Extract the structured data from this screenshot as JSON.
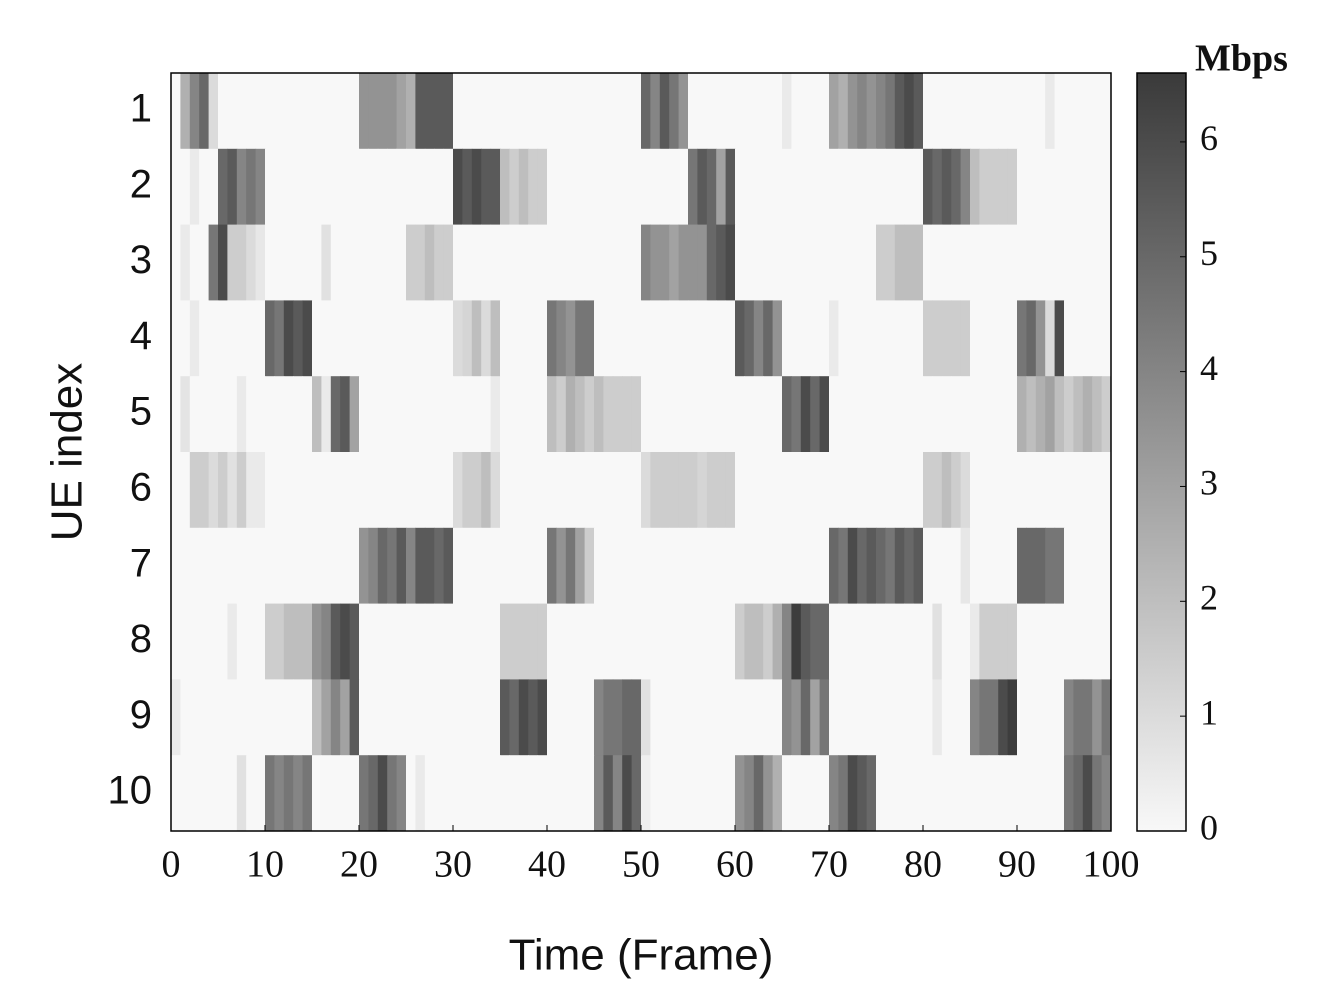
{
  "chart_data": {
    "type": "heatmap",
    "x_label": "Time (Frame)",
    "y_label": "UE index",
    "y_categories": [
      "1",
      "2",
      "3",
      "4",
      "5",
      "6",
      "7",
      "8",
      "9",
      "10"
    ],
    "xlim": [
      0,
      100
    ],
    "xticks": [
      0,
      10,
      20,
      30,
      40,
      50,
      60,
      70,
      80,
      90,
      100
    ],
    "cmap": [
      "#f8f8f8",
      "#3a3a3a"
    ],
    "colorbar": {
      "label": "Mbps",
      "lim": [
        0,
        6.6
      ],
      "ticks": [
        0,
        1,
        2,
        3,
        4,
        5,
        6
      ]
    },
    "z": [
      [
        0,
        2.5,
        4,
        5,
        1,
        0,
        0,
        0,
        0,
        0,
        0,
        0,
        0,
        0,
        0,
        0,
        0,
        0,
        0,
        0,
        3.5,
        3.5,
        3.5,
        3.5,
        3,
        2.5,
        5.5,
        5.5,
        5.5,
        5.5,
        0,
        0,
        0,
        0,
        0,
        0,
        0,
        0,
        0,
        0,
        0,
        0,
        0,
        0,
        0,
        0,
        0,
        0,
        0,
        0,
        5,
        4,
        5.5,
        4.5,
        3.5,
        0,
        0,
        0,
        0,
        0,
        0,
        0,
        0,
        0,
        0,
        0.5,
        0,
        0,
        0,
        0,
        3,
        2.5,
        3.5,
        4,
        3.5,
        4,
        4.5,
        5.5,
        6,
        5.5,
        0,
        0,
        0,
        0,
        0,
        0,
        0,
        0,
        0,
        0,
        0,
        0,
        0,
        0.5,
        0,
        0,
        0,
        0,
        0,
        0
      ],
      [
        0,
        0,
        0.5,
        0,
        0,
        5,
        5.5,
        4,
        4.5,
        4,
        0,
        0,
        0,
        0,
        0,
        0,
        0,
        0,
        0,
        0,
        0,
        0,
        0,
        0,
        0,
        0,
        0,
        0,
        0,
        0,
        6,
        5.5,
        6,
        5.5,
        5.5,
        2,
        1.5,
        2,
        1.5,
        1.5,
        0,
        0,
        0,
        0,
        0,
        0,
        0,
        0,
        0,
        0,
        0,
        0,
        0,
        0,
        0,
        4.5,
        5.5,
        5,
        3,
        5.5,
        0,
        0,
        0,
        0,
        0,
        0,
        0,
        0,
        0,
        0,
        0,
        0,
        0,
        0,
        0,
        0,
        0,
        0,
        0,
        0,
        5.5,
        5,
        5.5,
        5,
        4,
        2,
        1.5,
        1.5,
        1.5,
        1.5,
        0,
        0,
        0,
        0,
        0,
        0,
        0,
        0,
        0,
        0
      ],
      [
        0,
        0.5,
        0,
        0,
        4.5,
        6,
        1.5,
        1.5,
        1,
        0.6,
        0,
        0,
        0,
        0,
        0,
        0,
        0.8,
        0,
        0,
        0,
        0,
        0,
        0,
        0,
        0,
        1.5,
        1.5,
        2,
        1.5,
        1.5,
        0,
        0,
        0,
        0,
        0,
        0,
        0,
        0,
        0,
        0,
        0,
        0,
        0,
        0,
        0,
        0,
        0,
        0,
        0,
        0,
        4,
        3.5,
        3.5,
        3,
        3.5,
        3.5,
        3.5,
        5,
        5.5,
        6,
        0,
        0,
        0,
        0,
        0,
        0,
        0,
        0,
        0,
        0,
        0,
        0,
        0,
        0,
        0,
        1.5,
        1.5,
        2,
        2,
        2,
        0,
        0,
        0,
        0,
        0,
        0,
        0,
        0,
        0,
        0,
        0,
        0,
        0,
        0,
        0,
        0,
        0,
        0,
        0,
        0
      ],
      [
        0,
        0,
        0.5,
        0,
        0,
        0,
        0,
        0,
        0,
        0,
        5,
        4.5,
        6,
        5.5,
        6,
        0,
        0,
        0,
        0,
        0,
        0,
        0,
        0,
        0,
        0,
        0,
        0,
        0,
        0,
        0,
        1,
        1.2,
        2,
        1,
        2,
        0,
        0,
        0,
        0,
        0,
        4.5,
        4,
        3.5,
        4.5,
        4.5,
        0,
        0,
        0,
        0,
        0,
        0,
        0,
        0,
        0,
        0,
        0,
        0,
        0,
        0,
        0,
        5.5,
        5,
        4,
        5,
        3.5,
        0,
        0,
        0,
        0,
        0,
        0.5,
        0,
        0,
        0,
        0,
        0,
        0,
        0,
        0,
        0,
        1.5,
        1.5,
        1.5,
        1.5,
        1.5,
        0,
        0,
        0,
        0,
        0,
        4.5,
        5,
        3.5,
        1,
        6,
        0,
        0,
        0,
        0,
        0
      ],
      [
        0,
        0.7,
        0,
        0,
        0,
        0,
        0,
        0.5,
        0,
        0,
        0,
        0,
        0,
        0,
        0,
        2,
        0.5,
        5,
        5.5,
        3,
        0,
        0,
        0,
        0,
        0,
        0,
        0,
        0,
        0,
        0,
        0,
        0,
        0,
        0,
        0.5,
        0,
        0,
        0,
        0,
        0,
        2,
        1.5,
        2.5,
        2,
        1.5,
        2,
        1.5,
        1.5,
        1.5,
        1.5,
        0,
        0,
        0,
        0,
        0,
        0,
        0,
        0,
        0,
        0,
        0,
        0,
        0,
        0,
        0,
        5,
        4.5,
        6,
        5,
        6,
        0,
        0,
        0,
        0,
        0,
        0,
        0,
        0,
        0,
        0,
        0,
        0,
        0,
        0,
        0,
        0,
        0,
        0,
        0,
        0,
        2.5,
        2,
        2.5,
        3,
        2,
        1.5,
        2,
        2.5,
        2,
        1.5
      ],
      [
        0,
        0,
        1.5,
        1.5,
        1,
        1.5,
        0.8,
        1.5,
        0.5,
        0.5,
        0,
        0,
        0,
        0,
        0,
        0,
        0,
        0,
        0,
        0,
        0,
        0,
        0,
        0,
        0,
        0,
        0,
        0,
        0,
        0,
        1,
        1.5,
        1.5,
        2,
        1,
        0,
        0,
        0,
        0,
        0,
        0,
        0,
        0,
        0,
        0,
        0,
        0,
        0,
        0,
        0,
        1,
        1.5,
        1.5,
        1.5,
        1.5,
        1.5,
        1.2,
        1.5,
        1.5,
        1.5,
        0,
        0,
        0,
        0,
        0,
        0,
        0,
        0,
        0,
        0,
        0,
        0,
        0,
        0,
        0,
        0,
        0,
        0,
        0,
        0,
        1.5,
        1.5,
        2,
        1.5,
        1,
        0,
        0,
        0,
        0,
        0,
        0,
        0,
        0,
        0,
        0,
        0,
        0,
        0,
        0,
        0
      ],
      [
        0,
        0,
        0,
        0,
        0,
        0,
        0,
        0,
        0,
        0,
        0,
        0,
        0,
        0,
        0,
        0,
        0,
        0,
        0,
        0,
        3.5,
        4,
        5,
        4.5,
        5.5,
        4,
        5.5,
        5.5,
        5,
        5.5,
        0,
        0,
        0,
        0,
        0,
        0,
        0,
        0,
        0,
        0,
        4.5,
        3.5,
        4.5,
        3,
        1.5,
        0,
        0,
        0,
        0,
        0,
        0,
        0,
        0,
        0,
        0,
        0,
        0,
        0,
        0,
        0,
        0,
        0,
        0,
        0,
        0,
        0,
        0,
        0,
        0,
        0,
        5,
        4.5,
        6,
        5,
        5.5,
        5,
        4.5,
        5.5,
        5,
        5.5,
        0,
        0,
        0,
        0,
        0.6,
        0,
        0,
        0,
        0,
        0,
        5,
        5,
        5,
        4.5,
        4.5,
        0,
        0,
        0,
        0,
        0
      ],
      [
        0,
        0,
        0,
        0,
        0,
        0,
        0.5,
        0,
        0,
        0,
        1.5,
        1.5,
        2,
        2,
        2,
        3.5,
        4,
        5.5,
        6,
        5.5,
        0,
        0,
        0,
        0,
        0,
        0,
        0,
        0,
        0,
        0,
        0,
        0,
        0,
        0,
        0,
        1.5,
        1.5,
        1.5,
        1.5,
        1.5,
        0,
        0,
        0,
        0,
        0,
        0,
        0,
        0,
        0,
        0,
        0,
        0,
        0,
        0,
        0,
        0,
        0,
        0,
        0,
        0,
        1.5,
        2,
        2,
        1.5,
        2.5,
        4,
        6.5,
        5.5,
        5,
        5,
        0,
        0,
        0,
        0,
        0,
        0,
        0,
        0,
        0,
        0,
        0,
        0.8,
        0,
        0,
        0,
        0.5,
        1.5,
        1.5,
        1.5,
        1.5,
        0,
        0,
        0,
        0,
        0,
        0,
        0,
        0,
        0,
        0
      ],
      [
        0.5,
        0,
        0,
        0,
        0,
        0,
        0,
        0,
        0,
        0,
        0,
        0,
        0,
        0,
        0,
        2,
        3,
        4,
        3,
        5.5,
        0,
        0,
        0,
        0,
        0,
        0,
        0,
        0,
        0,
        0,
        0,
        0,
        0,
        0,
        0,
        5.5,
        5,
        6,
        5.5,
        6,
        0,
        0,
        0,
        0,
        0,
        4,
        4.5,
        4.5,
        5,
        5,
        0.8,
        0,
        0,
        0,
        0,
        0,
        0,
        0,
        0,
        0,
        0,
        0,
        0,
        0,
        0,
        4,
        3.5,
        5,
        3,
        4.5,
        0,
        0,
        0,
        0,
        0,
        0,
        0,
        0,
        0,
        0,
        0,
        0.5,
        0,
        0,
        0,
        4,
        4.5,
        4.5,
        6,
        6.5,
        0,
        0,
        0,
        0,
        0,
        4,
        4.5,
        4.5,
        3.5,
        4.5
      ],
      [
        0,
        0,
        0,
        0,
        0,
        0,
        0,
        0.8,
        0,
        0,
        4.5,
        4,
        4.5,
        4,
        4.5,
        0,
        0,
        0,
        0,
        0,
        4.5,
        5,
        6,
        4.5,
        4,
        0,
        0.5,
        0,
        0,
        0,
        0,
        0,
        0,
        0,
        0,
        0,
        0,
        0,
        0,
        0,
        0,
        0,
        0,
        0,
        0,
        4,
        5.5,
        4,
        6,
        5,
        0.3,
        0,
        0,
        0,
        0,
        0,
        0,
        0,
        0,
        0,
        3.5,
        4,
        5,
        3.5,
        2.5,
        0,
        0,
        0,
        0,
        0,
        4,
        4.5,
        6,
        5.5,
        5,
        0,
        0,
        0,
        0,
        0,
        0,
        0,
        0,
        0,
        0,
        0,
        0,
        0,
        0,
        0,
        0,
        0,
        0,
        0,
        0,
        4.5,
        5,
        6,
        4.5,
        4
      ]
    ]
  }
}
